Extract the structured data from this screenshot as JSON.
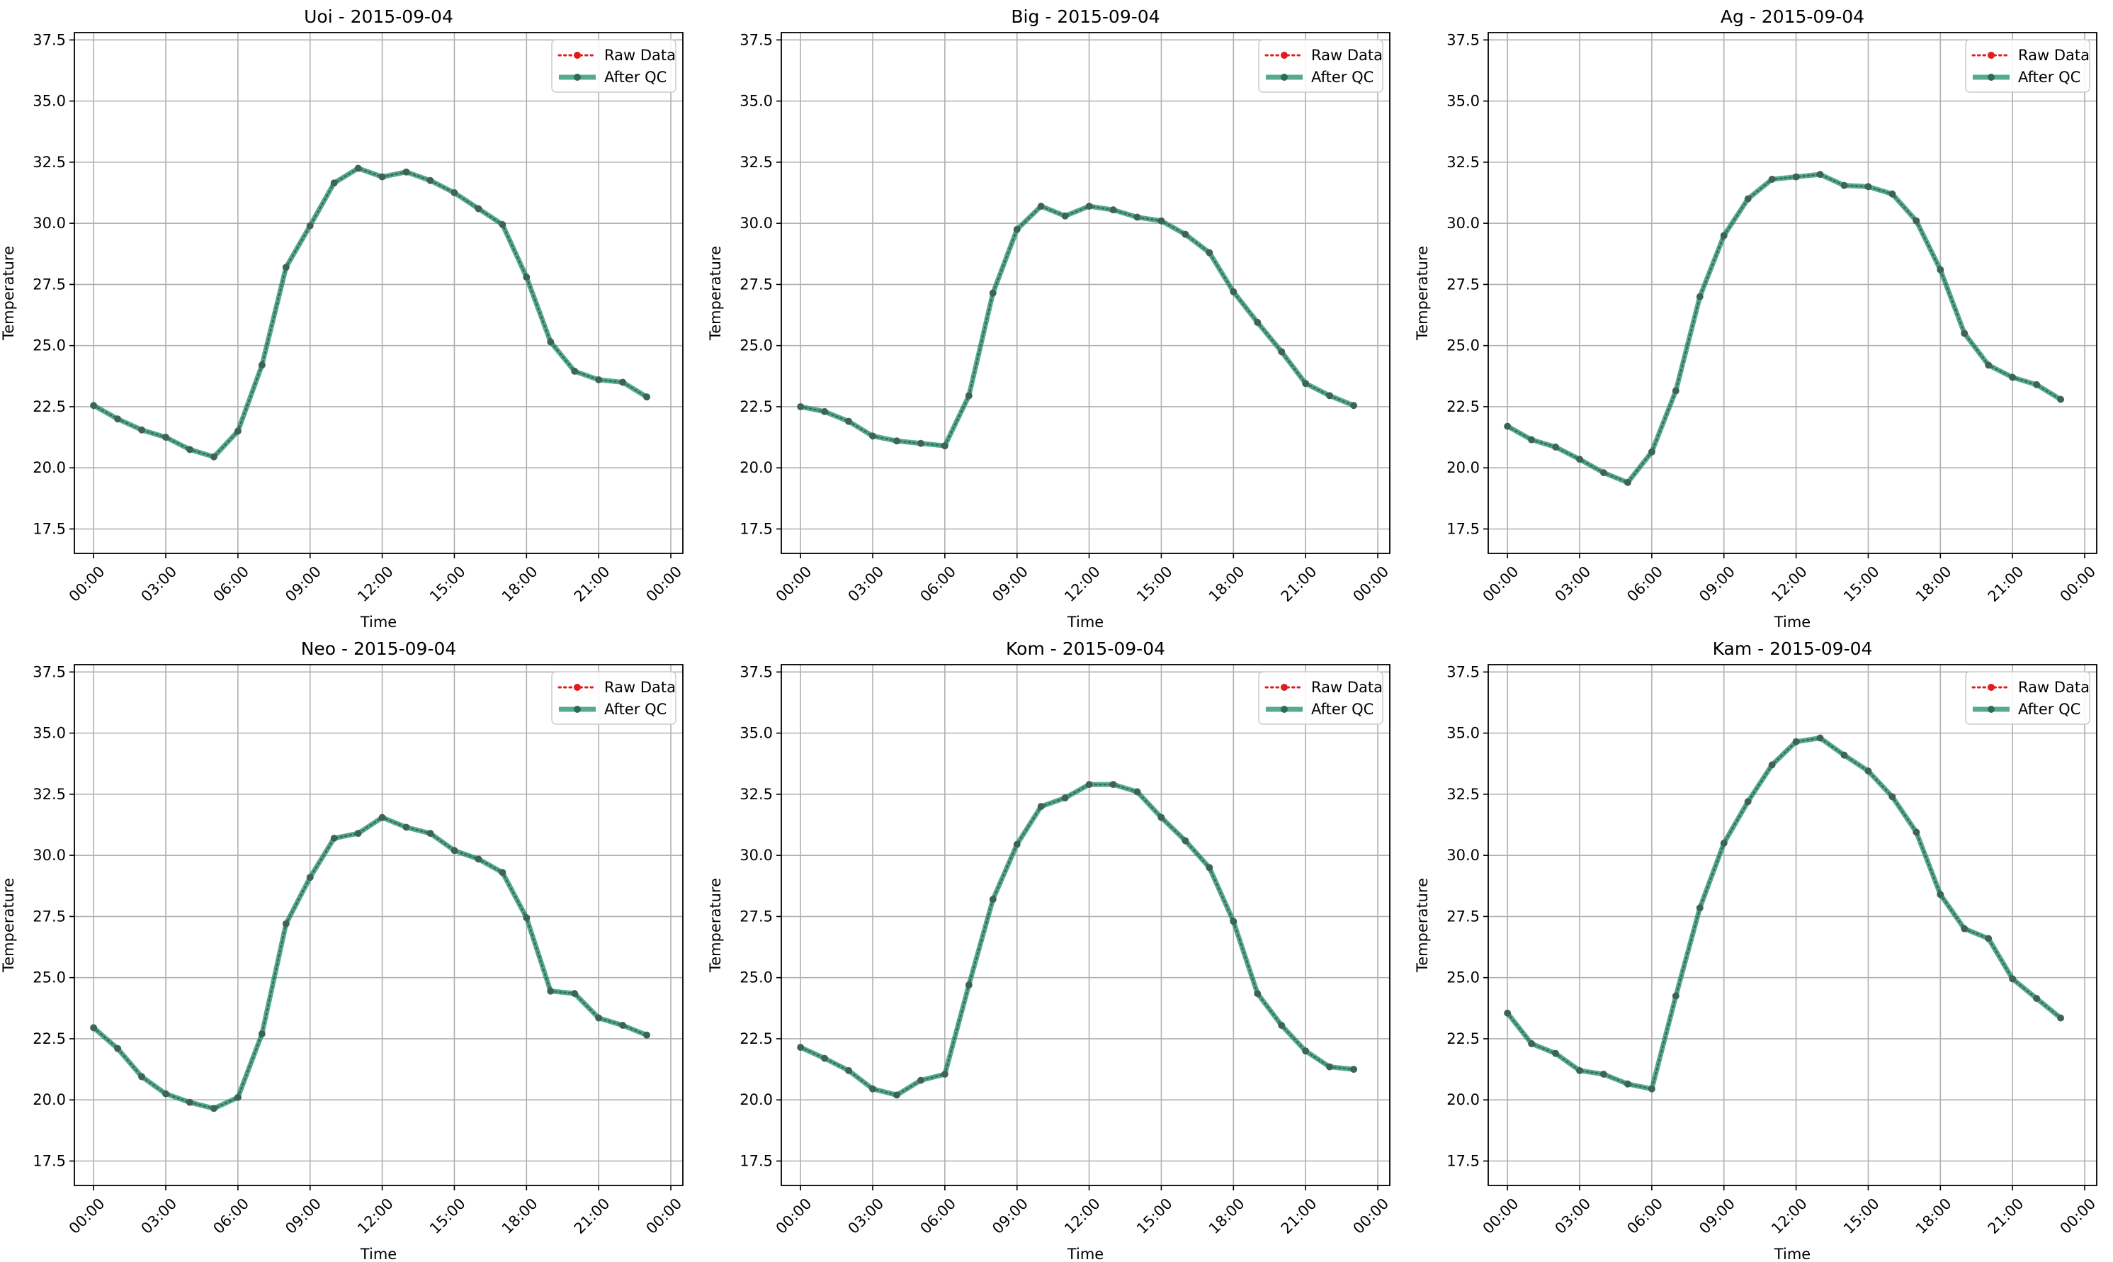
{
  "chart_data": [
    {
      "type": "line",
      "title": "Uoi - 2015-09-04",
      "xlabel": "Time",
      "ylabel": "Temperature",
      "ylim": [
        16.5,
        37.8
      ],
      "yticks": [
        "17.5",
        "20.0",
        "22.5",
        "25.0",
        "27.5",
        "30.0",
        "32.5",
        "35.0",
        "37.5"
      ],
      "xticks": [
        "00:00",
        "03:00",
        "06:00",
        "09:00",
        "12:00",
        "15:00",
        "18:00",
        "21:00",
        "00:00"
      ],
      "x_hours": [
        0,
        1,
        2,
        3,
        4,
        5,
        6,
        7,
        8,
        9,
        10,
        11,
        12,
        13,
        14,
        15,
        16,
        17,
        18,
        19,
        20,
        21,
        22,
        23
      ],
      "grid": true,
      "legend": "top-right",
      "series": [
        {
          "name": "Raw Data",
          "color": "#e41a1c",
          "style": "dotted",
          "values": [
            22.55,
            22.0,
            21.55,
            21.25,
            20.75,
            20.45,
            21.5,
            24.2,
            28.2,
            29.9,
            31.65,
            32.25,
            31.9,
            32.1,
            31.75,
            31.25,
            30.6,
            29.95,
            27.8,
            25.15,
            23.95,
            23.6,
            23.5,
            22.9
          ]
        },
        {
          "name": "After QC",
          "color": "#1b8f6a",
          "style": "solid",
          "values": [
            22.55,
            22.0,
            21.55,
            21.25,
            20.75,
            20.45,
            21.5,
            24.2,
            28.2,
            29.9,
            31.65,
            32.25,
            31.9,
            32.1,
            31.75,
            31.25,
            30.6,
            29.95,
            27.8,
            25.15,
            23.95,
            23.6,
            23.5,
            22.9
          ]
        }
      ]
    },
    {
      "type": "line",
      "title": "Big - 2015-09-04",
      "xlabel": "Time",
      "ylabel": "Temperature",
      "ylim": [
        16.5,
        37.8
      ],
      "yticks": [
        "17.5",
        "20.0",
        "22.5",
        "25.0",
        "27.5",
        "30.0",
        "32.5",
        "35.0",
        "37.5"
      ],
      "xticks": [
        "00:00",
        "03:00",
        "06:00",
        "09:00",
        "12:00",
        "15:00",
        "18:00",
        "21:00",
        "00:00"
      ],
      "x_hours": [
        0,
        1,
        2,
        3,
        4,
        5,
        6,
        7,
        8,
        9,
        10,
        11,
        12,
        13,
        14,
        15,
        16,
        17,
        18,
        19,
        20,
        21,
        22,
        23
      ],
      "grid": true,
      "legend": "top-right",
      "series": [
        {
          "name": "Raw Data",
          "color": "#e41a1c",
          "style": "dotted",
          "values": [
            22.5,
            22.3,
            21.9,
            21.3,
            21.1,
            21.0,
            20.9,
            22.95,
            27.15,
            29.75,
            30.7,
            30.3,
            30.7,
            30.55,
            30.25,
            30.1,
            29.55,
            28.8,
            27.2,
            25.95,
            24.75,
            23.45,
            22.95,
            22.55
          ]
        },
        {
          "name": "After QC",
          "color": "#1b8f6a",
          "style": "solid",
          "values": [
            22.5,
            22.3,
            21.9,
            21.3,
            21.1,
            21.0,
            20.9,
            22.95,
            27.15,
            29.75,
            30.7,
            30.3,
            30.7,
            30.55,
            30.25,
            30.1,
            29.55,
            28.8,
            27.2,
            25.95,
            24.75,
            23.45,
            22.95,
            22.55
          ]
        }
      ]
    },
    {
      "type": "line",
      "title": "Ag - 2015-09-04",
      "xlabel": "Time",
      "ylabel": "Temperature",
      "ylim": [
        16.5,
        37.8
      ],
      "yticks": [
        "17.5",
        "20.0",
        "22.5",
        "25.0",
        "27.5",
        "30.0",
        "32.5",
        "35.0",
        "37.5"
      ],
      "xticks": [
        "00:00",
        "03:00",
        "06:00",
        "09:00",
        "12:00",
        "15:00",
        "18:00",
        "21:00",
        "00:00"
      ],
      "x_hours": [
        0,
        1,
        2,
        3,
        4,
        5,
        6,
        7,
        8,
        9,
        10,
        11,
        12,
        13,
        14,
        15,
        16,
        17,
        18,
        19,
        20,
        21,
        22,
        23
      ],
      "grid": true,
      "legend": "top-right",
      "series": [
        {
          "name": "Raw Data",
          "color": "#e41a1c",
          "style": "dotted",
          "values": [
            21.7,
            21.15,
            20.85,
            20.35,
            19.8,
            19.4,
            20.65,
            23.15,
            27.0,
            29.5,
            31.0,
            31.8,
            31.9,
            32.0,
            31.55,
            31.5,
            31.2,
            30.1,
            28.1,
            25.5,
            24.2,
            23.7,
            23.4,
            22.8
          ]
        },
        {
          "name": "After QC",
          "color": "#1b8f6a",
          "style": "solid",
          "values": [
            21.7,
            21.15,
            20.85,
            20.35,
            19.8,
            19.4,
            20.65,
            23.15,
            27.0,
            29.5,
            31.0,
            31.8,
            31.9,
            32.0,
            31.55,
            31.5,
            31.2,
            30.1,
            28.1,
            25.5,
            24.2,
            23.7,
            23.4,
            22.8
          ]
        }
      ]
    },
    {
      "type": "line",
      "title": "Neo - 2015-09-04",
      "xlabel": "Time",
      "ylabel": "Temperature",
      "ylim": [
        16.5,
        37.8
      ],
      "yticks": [
        "17.5",
        "20.0",
        "22.5",
        "25.0",
        "27.5",
        "30.0",
        "32.5",
        "35.0",
        "37.5"
      ],
      "xticks": [
        "00:00",
        "03:00",
        "06:00",
        "09:00",
        "12:00",
        "15:00",
        "18:00",
        "21:00",
        "00:00"
      ],
      "x_hours": [
        0,
        1,
        2,
        3,
        4,
        5,
        6,
        7,
        8,
        9,
        10,
        11,
        12,
        13,
        14,
        15,
        16,
        17,
        18,
        19,
        20,
        21,
        22,
        23
      ],
      "grid": true,
      "legend": "top-right",
      "series": [
        {
          "name": "Raw Data",
          "color": "#e41a1c",
          "style": "dotted",
          "values": [
            22.95,
            22.1,
            20.95,
            20.25,
            19.9,
            19.65,
            20.1,
            22.7,
            27.2,
            29.1,
            30.7,
            30.9,
            31.55,
            31.15,
            30.9,
            30.2,
            29.85,
            29.3,
            27.45,
            24.45,
            24.35,
            23.35,
            23.05,
            22.65
          ]
        },
        {
          "name": "After QC",
          "color": "#1b8f6a",
          "style": "solid",
          "values": [
            22.95,
            22.1,
            20.95,
            20.25,
            19.9,
            19.65,
            20.1,
            22.7,
            27.2,
            29.1,
            30.7,
            30.9,
            31.55,
            31.15,
            30.9,
            30.2,
            29.85,
            29.3,
            27.45,
            24.45,
            24.35,
            23.35,
            23.05,
            22.65
          ]
        }
      ]
    },
    {
      "type": "line",
      "title": "Kom - 2015-09-04",
      "xlabel": "Time",
      "ylabel": "Temperature",
      "ylim": [
        16.5,
        37.8
      ],
      "yticks": [
        "17.5",
        "20.0",
        "22.5",
        "25.0",
        "27.5",
        "30.0",
        "32.5",
        "35.0",
        "37.5"
      ],
      "xticks": [
        "00:00",
        "03:00",
        "06:00",
        "09:00",
        "12:00",
        "15:00",
        "18:00",
        "21:00",
        "00:00"
      ],
      "x_hours": [
        0,
        1,
        2,
        3,
        4,
        5,
        6,
        7,
        8,
        9,
        10,
        11,
        12,
        13,
        14,
        15,
        16,
        17,
        18,
        19,
        20,
        21,
        22,
        23
      ],
      "grid": true,
      "legend": "top-right",
      "series": [
        {
          "name": "Raw Data",
          "color": "#e41a1c",
          "style": "dotted",
          "values": [
            22.15,
            21.7,
            21.2,
            20.45,
            20.2,
            20.8,
            21.05,
            24.7,
            28.2,
            30.45,
            32.0,
            32.35,
            32.9,
            32.9,
            32.6,
            31.55,
            30.6,
            29.5,
            27.3,
            24.35,
            23.05,
            22.0,
            21.35,
            21.25
          ]
        },
        {
          "name": "After QC",
          "color": "#1b8f6a",
          "style": "solid",
          "values": [
            22.15,
            21.7,
            21.2,
            20.45,
            20.2,
            20.8,
            21.05,
            24.7,
            28.2,
            30.45,
            32.0,
            32.35,
            32.9,
            32.9,
            32.6,
            31.55,
            30.6,
            29.5,
            27.3,
            24.35,
            23.05,
            22.0,
            21.35,
            21.25
          ]
        }
      ]
    },
    {
      "type": "line",
      "title": "Kam - 2015-09-04",
      "xlabel": "Time",
      "ylabel": "Temperature",
      "ylim": [
        16.5,
        37.8
      ],
      "yticks": [
        "17.5",
        "20.0",
        "22.5",
        "25.0",
        "27.5",
        "30.0",
        "32.5",
        "35.0",
        "37.5"
      ],
      "xticks": [
        "00:00",
        "03:00",
        "06:00",
        "09:00",
        "12:00",
        "15:00",
        "18:00",
        "21:00",
        "00:00"
      ],
      "x_hours": [
        0,
        1,
        2,
        3,
        4,
        5,
        6,
        7,
        8,
        9,
        10,
        11,
        12,
        13,
        14,
        15,
        16,
        17,
        18,
        19,
        20,
        21,
        22,
        23
      ],
      "grid": true,
      "legend": "top-right",
      "series": [
        {
          "name": "Raw Data",
          "color": "#e41a1c",
          "style": "dotted",
          "values": [
            23.55,
            22.3,
            21.9,
            21.2,
            21.05,
            20.65,
            20.45,
            24.25,
            27.85,
            30.5,
            32.2,
            33.7,
            34.65,
            34.8,
            34.1,
            33.45,
            32.4,
            30.95,
            28.4,
            27.0,
            26.6,
            24.95,
            24.15,
            23.35
          ]
        },
        {
          "name": "After QC",
          "color": "#1b8f6a",
          "style": "solid",
          "values": [
            23.55,
            22.3,
            21.9,
            21.2,
            21.05,
            20.65,
            20.45,
            24.25,
            27.85,
            30.5,
            32.2,
            33.7,
            34.65,
            34.8,
            34.1,
            33.45,
            32.4,
            30.95,
            28.4,
            27.0,
            26.6,
            24.95,
            24.15,
            23.35
          ]
        }
      ]
    }
  ]
}
